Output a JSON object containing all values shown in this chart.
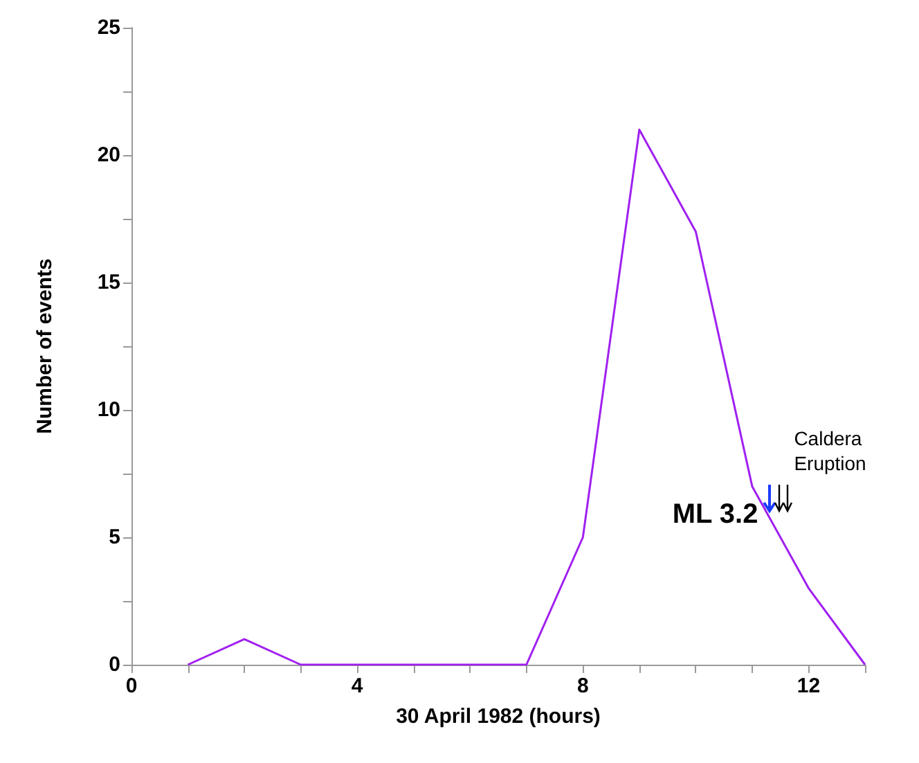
{
  "chart_data": {
    "type": "line",
    "xlabel": "30 April 1982 (hours)",
    "ylabel": "Number of events",
    "x": [
      1,
      2,
      3,
      7,
      8,
      9,
      10,
      11,
      12,
      13
    ],
    "series": [
      {
        "color": "#a020f0",
        "values": [
          0,
          1,
          0,
          0,
          5,
          21,
          17,
          7,
          3,
          0
        ]
      }
    ],
    "xlim": [
      0,
      13
    ],
    "xticks": [
      0,
      {
        "value": 1,
        "label": null
      },
      {
        "value": 2,
        "label": null
      },
      {
        "value": 3,
        "label": null
      },
      4,
      {
        "value": 5,
        "label": null
      },
      {
        "value": 6,
        "label": null
      },
      {
        "value": 7,
        "label": null
      },
      8,
      {
        "value": 9,
        "label": null
      },
      {
        "value": 10,
        "label": null
      },
      {
        "value": 11,
        "label": null
      },
      12,
      {
        "value": 13,
        "label": null
      }
    ],
    "ylim": [
      0,
      25
    ],
    "yticks": [
      0,
      {
        "value": 2.5,
        "label": null
      },
      5,
      {
        "value": 7.5,
        "label": null
      },
      10,
      {
        "value": 12.5,
        "label": null
      },
      15,
      {
        "value": 17.5,
        "label": null
      },
      20,
      {
        "value": 22.5,
        "label": null
      },
      25
    ],
    "annotations": [
      {
        "text": "ML 3.2",
        "x": 11.3,
        "y": 6
      },
      "Caldera\nEruption"
    ],
    "grid": false,
    "marker": "none",
    "line_style": "solid"
  }
}
